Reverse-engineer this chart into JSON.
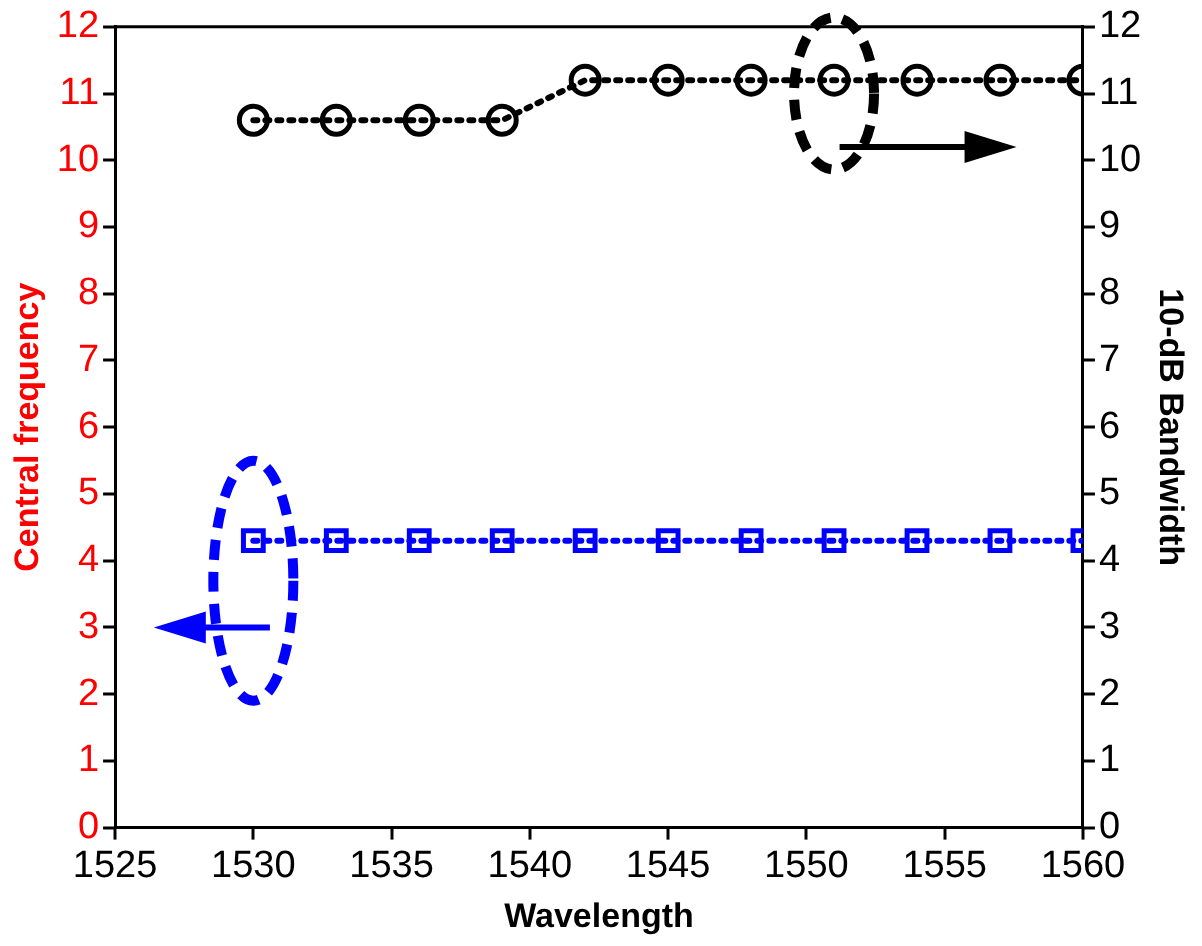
{
  "chart_data": {
    "type": "line",
    "xlabel": "Wavelength",
    "ylabel": "Central frequency",
    "y2label": "10-dB Bandwidth",
    "x": [
      1530,
      1533,
      1536,
      1539,
      1542,
      1545,
      1548,
      1551,
      1554,
      1557,
      1560
    ],
    "series": [
      {
        "color": "#0000ff",
        "marker": "square",
        "values": [
          4.3,
          4.3,
          4.3,
          4.3,
          4.3,
          4.3,
          4.3,
          4.3,
          4.3,
          4.3,
          4.3
        ]
      },
      {
        "color": "#000000",
        "marker": "circle",
        "axis": "y2",
        "values": [
          10.6,
          10.6,
          10.6,
          10.6,
          11.2,
          11.2,
          11.2,
          11.2,
          11.2,
          11.2,
          11.2
        ]
      }
    ],
    "xlim": [
      1525,
      1560
    ],
    "xticks": [
      1525,
      1530,
      1535,
      1540,
      1545,
      1550,
      1555,
      1560
    ],
    "ylim": [
      0,
      12
    ],
    "yticks": [
      0,
      1,
      2,
      3,
      4,
      5,
      6,
      7,
      8,
      9,
      10,
      11,
      12
    ],
    "y2lim": [
      0,
      12
    ],
    "y2ticks": [
      0,
      1,
      2,
      3,
      4,
      5,
      6,
      7,
      8,
      9,
      10,
      11,
      12
    ],
    "grid": false,
    "legend": false,
    "line_style": "dotted"
  }
}
